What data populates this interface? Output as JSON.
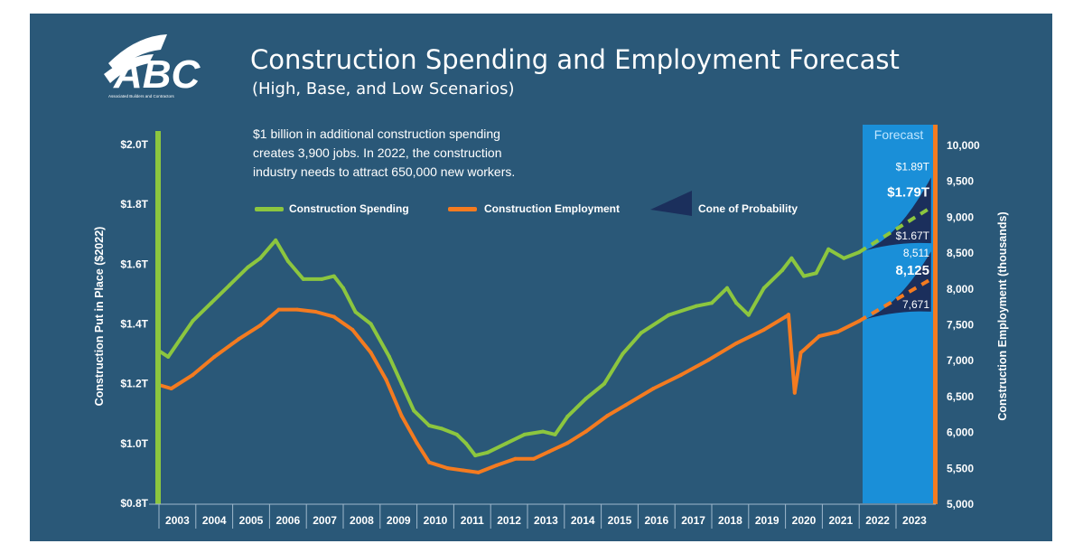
{
  "logo": {
    "text": "ABC",
    "tagline": "Associated Builders and Contractors"
  },
  "colors": {
    "background": "#2a5878",
    "spending": "#8cc63f",
    "employment": "#f47b20",
    "cone": "#1b2f5c",
    "forecast_band": "#1a8fd8"
  },
  "chart_data": {
    "type": "line",
    "title": "Construction Spending and Employment Forecast",
    "subtitle": "(High, Base, and Low Scenarios)",
    "note_lines": [
      "$1 billion in additional construction spending",
      "creates 3,900 jobs. In 2022, the construction",
      "industry needs to attract 650,000 new workers."
    ],
    "legend": {
      "placement": "top-center",
      "items": [
        "Construction Spending",
        "Construction Employment",
        "Cone of Probability"
      ]
    },
    "forecast_label": "Forecast",
    "forecast_range": [
      "2022-01",
      "2023-12"
    ],
    "x_ticks": [
      "2003",
      "2004",
      "2005",
      "2006",
      "2007",
      "2008",
      "2009",
      "2010",
      "2011",
      "2012",
      "2013",
      "2014",
      "2015",
      "2016",
      "2017",
      "2018",
      "2019",
      "2020",
      "2021",
      "2022",
      "2023"
    ],
    "y_left": {
      "label": "Construction Put in Place ($2022)",
      "range": [
        0.8,
        2.0
      ],
      "unit": "trillion $",
      "ticks": [
        "$0.8T",
        "$1.0T",
        "$1.2T",
        "$1.4T",
        "$1.6T",
        "$1.8T",
        "$2.0T"
      ]
    },
    "y_right": {
      "label": "Construction Employment (thousands)",
      "range": [
        5000,
        10000
      ],
      "ticks": [
        "5,000",
        "5,500",
        "6,000",
        "6,500",
        "7,000",
        "7,500",
        "8,000",
        "8,500",
        "9,000",
        "9,500",
        "10,000"
      ]
    },
    "grid": false,
    "series": [
      {
        "name": "Construction Spending",
        "axis": "left",
        "x": [
          "2003-01",
          "2003-04",
          "2003-08",
          "2003-12",
          "2004-06",
          "2004-12",
          "2005-06",
          "2005-10",
          "2006-03",
          "2006-07",
          "2006-12",
          "2007-06",
          "2007-10",
          "2008-01",
          "2008-05",
          "2008-10",
          "2009-04",
          "2009-08",
          "2009-12",
          "2010-05",
          "2010-09",
          "2011-02",
          "2011-05",
          "2011-08",
          "2011-12",
          "2012-06",
          "2012-12",
          "2013-06",
          "2013-10",
          "2014-02",
          "2014-08",
          "2015-02",
          "2015-08",
          "2016-02",
          "2016-11",
          "2017-08",
          "2018-01",
          "2018-06",
          "2018-09",
          "2019-01",
          "2019-06",
          "2019-12",
          "2020-03",
          "2020-07",
          "2020-11",
          "2021-03",
          "2021-08",
          "2022-01"
        ],
        "y": [
          1.31,
          1.29,
          1.35,
          1.41,
          1.47,
          1.53,
          1.59,
          1.62,
          1.68,
          1.61,
          1.55,
          1.55,
          1.56,
          1.52,
          1.44,
          1.4,
          1.29,
          1.2,
          1.11,
          1.06,
          1.05,
          1.03,
          1.0,
          0.96,
          0.97,
          1.0,
          1.03,
          1.04,
          1.03,
          1.09,
          1.15,
          1.2,
          1.3,
          1.37,
          1.43,
          1.46,
          1.47,
          1.52,
          1.47,
          1.43,
          1.52,
          1.58,
          1.62,
          1.56,
          1.57,
          1.65,
          1.62,
          1.64
        ],
        "forecast": {
          "x": [
            "2022-01",
            "2023-12"
          ],
          "base": [
            1.64,
            1.79
          ],
          "high": [
            1.64,
            1.89
          ],
          "low": [
            1.64,
            1.67
          ],
          "labels": {
            "high": "$1.89T",
            "base": "$1.79T",
            "low": "$1.67T"
          }
        }
      },
      {
        "name": "Construction Employment",
        "axis": "right",
        "x": [
          "2003-01",
          "2003-05",
          "2003-12",
          "2004-07",
          "2005-03",
          "2005-10",
          "2006-04",
          "2006-10",
          "2007-04",
          "2007-10",
          "2008-04",
          "2008-10",
          "2009-03",
          "2009-08",
          "2010-01",
          "2010-05",
          "2010-11",
          "2011-04",
          "2011-09",
          "2012-03",
          "2012-09",
          "2013-03",
          "2013-08",
          "2014-02",
          "2014-08",
          "2015-03",
          "2015-09",
          "2016-06",
          "2017-03",
          "2017-12",
          "2018-09",
          "2019-06",
          "2020-01",
          "2020-02",
          "2020-04",
          "2020-06",
          "2020-12",
          "2021-06",
          "2022-01"
        ],
        "y": [
          6650,
          6600,
          6790,
          7040,
          7290,
          7480,
          7700,
          7700,
          7670,
          7600,
          7420,
          7100,
          6720,
          6220,
          5840,
          5570,
          5490,
          5460,
          5430,
          5530,
          5620,
          5620,
          5720,
          5840,
          6000,
          6220,
          6370,
          6600,
          6790,
          7000,
          7230,
          7420,
          7600,
          7630,
          6540,
          7100,
          7330,
          7390,
          7540
        ],
        "forecast": {
          "x": [
            "2022-01",
            "2023-12"
          ],
          "base": [
            7540,
            8125
          ],
          "high": [
            7540,
            8511
          ],
          "low": [
            7540,
            7671
          ],
          "labels": {
            "high": "8,511",
            "base": "8,125",
            "low": "7,671"
          }
        }
      }
    ]
  }
}
